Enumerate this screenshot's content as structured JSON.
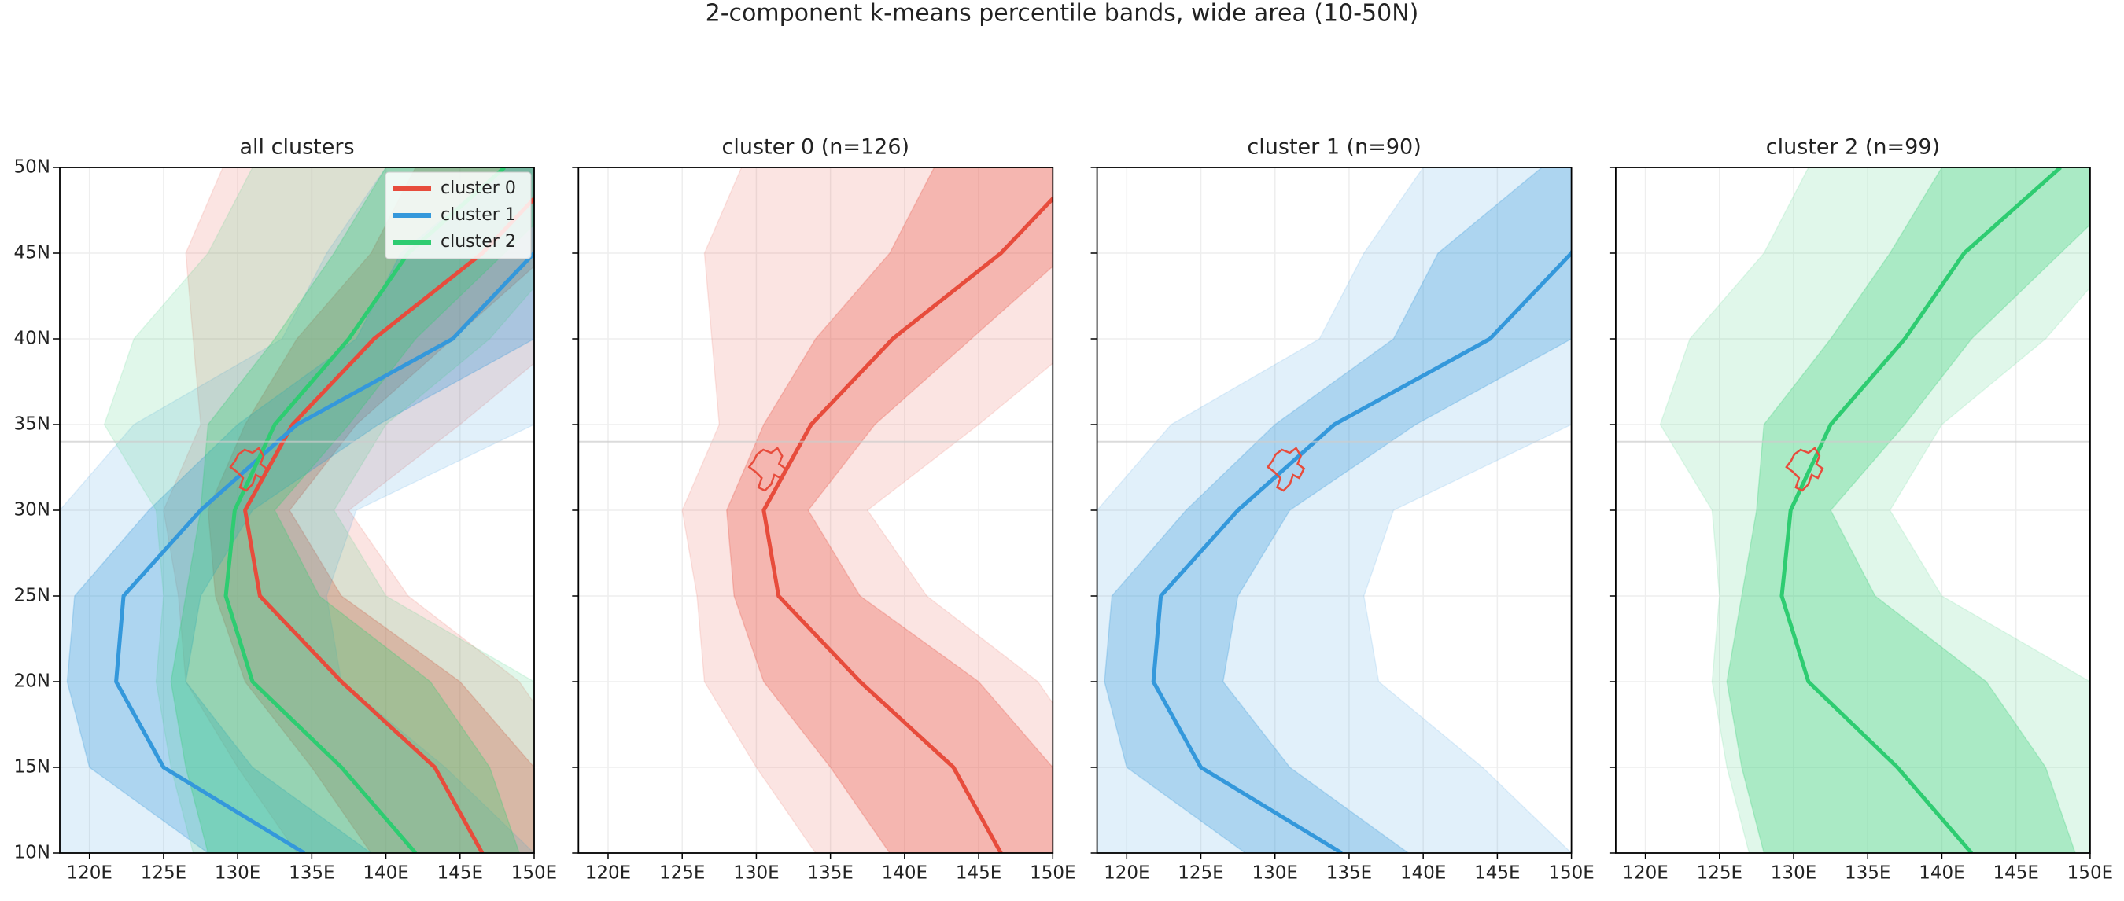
{
  "title": "2-component k-means percentile bands, wide area (10-50N)",
  "chart_data": [
    {
      "type": "band",
      "title": "all clusters",
      "legend": "upper right",
      "grid": true,
      "hline": 34,
      "show_ytick_labels": true,
      "lat": [
        10,
        15,
        20,
        25,
        30,
        35,
        40,
        45,
        50
      ],
      "xlim": [
        118,
        150
      ],
      "ylim": [
        10,
        50
      ],
      "xticks": [
        {
          "value": 120,
          "label": "120E"
        },
        {
          "value": 125,
          "label": "125E"
        },
        {
          "value": 130,
          "label": "130E"
        },
        {
          "value": 135,
          "label": "135E"
        },
        {
          "value": 140,
          "label": "140E"
        },
        {
          "value": 145,
          "label": "145E"
        },
        {
          "value": 150,
          "label": "150E"
        }
      ],
      "yticks": [
        {
          "value": 10,
          "label": "10N"
        },
        {
          "value": 15,
          "label": "15N"
        },
        {
          "value": 20,
          "label": "20N"
        },
        {
          "value": 25,
          "label": "25N"
        },
        {
          "value": 30,
          "label": "30N"
        },
        {
          "value": 35,
          "label": "35N"
        },
        {
          "value": 40,
          "label": "40N"
        },
        {
          "value": 45,
          "label": "45N"
        },
        {
          "value": 50,
          "label": "50N"
        }
      ],
      "series": [
        {
          "name": "cluster 0",
          "color": "#e74c3c",
          "values": [
            146.5,
            143.3,
            137,
            131.5,
            130.5,
            133.7,
            139.2,
            146.5,
            152
          ],
          "inner_low": [
            139,
            135,
            130.5,
            128.5,
            128,
            130.5,
            134,
            139,
            142
          ],
          "inner_high": [
            152,
            150,
            145,
            137,
            133.5,
            138,
            144.5,
            151,
            158
          ],
          "outer_low": [
            134,
            130,
            126.5,
            126,
            125,
            127.5,
            127,
            126.5,
            129
          ],
          "outer_high": [
            158,
            153,
            149,
            141.5,
            137.5,
            145,
            152,
            158,
            160
          ]
        },
        {
          "name": "cluster 1",
          "color": "#3498db",
          "values": [
            134.5,
            125,
            121.8,
            122.3,
            127.5,
            134,
            144.5,
            150,
            153
          ],
          "inner_low": [
            128,
            120,
            118.5,
            119,
            124,
            130,
            138,
            141,
            148
          ],
          "inner_high": [
            139,
            131,
            126.5,
            127.5,
            131,
            139.5,
            150,
            155,
            158
          ],
          "outer_low": [
            117,
            114,
            113,
            114,
            118,
            123,
            133,
            136,
            140
          ],
          "outer_high": [
            150,
            144,
            137,
            136,
            138,
            150,
            155,
            160,
            162
          ]
        },
        {
          "name": "cluster 2",
          "color": "#2ecc71",
          "values": [
            142,
            137,
            131,
            129.2,
            129.8,
            132.5,
            137.5,
            141.5,
            148
          ],
          "inner_low": [
            128,
            126.5,
            125.5,
            126.5,
            127.5,
            128,
            132.5,
            136.5,
            140
          ],
          "inner_high": [
            149,
            147,
            143,
            135.5,
            132.5,
            137.5,
            142,
            148,
            154
          ],
          "outer_low": [
            127,
            125.5,
            124.5,
            125,
            124.5,
            121,
            123,
            128,
            131
          ],
          "outer_high": [
            160,
            155,
            150,
            140,
            136.5,
            140,
            147,
            152,
            156
          ]
        }
      ]
    },
    {
      "type": "band",
      "title": "cluster 0 (n=126)",
      "grid": true,
      "hline": 34,
      "show_ytick_labels": false,
      "lat": [
        10,
        15,
        20,
        25,
        30,
        35,
        40,
        45,
        50
      ],
      "xlim": [
        118,
        150
      ],
      "ylim": [
        10,
        50
      ],
      "xticks": [
        {
          "value": 120,
          "label": "120E"
        },
        {
          "value": 125,
          "label": "125E"
        },
        {
          "value": 130,
          "label": "130E"
        },
        {
          "value": 135,
          "label": "135E"
        },
        {
          "value": 140,
          "label": "140E"
        },
        {
          "value": 145,
          "label": "145E"
        },
        {
          "value": 150,
          "label": "150E"
        }
      ],
      "yticks": [
        10,
        15,
        20,
        25,
        30,
        35,
        40,
        45,
        50
      ],
      "series": [
        {
          "color": "#e74c3c",
          "values": [
            146.5,
            143.3,
            137,
            131.5,
            130.5,
            133.7,
            139.2,
            146.5,
            152
          ],
          "inner_low": [
            139,
            135,
            130.5,
            128.5,
            128,
            130.5,
            134,
            139,
            142
          ],
          "inner_high": [
            152,
            150,
            145,
            137,
            133.5,
            138,
            144.5,
            151,
            158
          ],
          "outer_low": [
            134,
            130,
            126.5,
            126,
            125,
            127.5,
            127,
            126.5,
            129
          ],
          "outer_high": [
            158,
            153,
            149,
            141.5,
            137.5,
            145,
            152,
            158,
            160
          ]
        }
      ]
    },
    {
      "type": "band",
      "title": "cluster 1 (n=90)",
      "grid": true,
      "hline": 34,
      "show_ytick_labels": false,
      "lat": [
        10,
        15,
        20,
        25,
        30,
        35,
        40,
        45,
        50
      ],
      "xlim": [
        118,
        150
      ],
      "ylim": [
        10,
        50
      ],
      "xticks": [
        {
          "value": 120,
          "label": "120E"
        },
        {
          "value": 125,
          "label": "125E"
        },
        {
          "value": 130,
          "label": "130E"
        },
        {
          "value": 135,
          "label": "135E"
        },
        {
          "value": 140,
          "label": "140E"
        },
        {
          "value": 145,
          "label": "145E"
        },
        {
          "value": 150,
          "label": "150E"
        }
      ],
      "yticks": [
        10,
        15,
        20,
        25,
        30,
        35,
        40,
        45,
        50
      ],
      "series": [
        {
          "color": "#3498db",
          "values": [
            134.5,
            125,
            121.8,
            122.3,
            127.5,
            134,
            144.5,
            150,
            153
          ],
          "inner_low": [
            128,
            120,
            118.5,
            119,
            124,
            130,
            138,
            141,
            148
          ],
          "inner_high": [
            139,
            131,
            126.5,
            127.5,
            131,
            139.5,
            150,
            155,
            158
          ],
          "outer_low": [
            117,
            114,
            113,
            114,
            118,
            123,
            133,
            136,
            140
          ],
          "outer_high": [
            150,
            144,
            137,
            136,
            138,
            150,
            155,
            160,
            162
          ]
        }
      ]
    },
    {
      "type": "band",
      "title": "cluster 2 (n=99)",
      "grid": true,
      "hline": 34,
      "show_ytick_labels": false,
      "lat": [
        10,
        15,
        20,
        25,
        30,
        35,
        40,
        45,
        50
      ],
      "xlim": [
        118,
        150
      ],
      "ylim": [
        10,
        50
      ],
      "xticks": [
        {
          "value": 120,
          "label": "120E"
        },
        {
          "value": 125,
          "label": "125E"
        },
        {
          "value": 130,
          "label": "130E"
        },
        {
          "value": 135,
          "label": "135E"
        },
        {
          "value": 140,
          "label": "140E"
        },
        {
          "value": 145,
          "label": "145E"
        },
        {
          "value": 150,
          "label": "150E"
        }
      ],
      "yticks": [
        10,
        15,
        20,
        25,
        30,
        35,
        40,
        45,
        50
      ],
      "series": [
        {
          "color": "#2ecc71",
          "values": [
            142,
            137,
            131,
            129.2,
            129.8,
            132.5,
            137.5,
            141.5,
            148
          ],
          "inner_low": [
            128,
            126.5,
            125.5,
            126.5,
            127.5,
            128,
            132.5,
            136.5,
            140
          ],
          "inner_high": [
            149,
            147,
            143,
            135.5,
            132.5,
            137.5,
            142,
            148,
            154
          ],
          "outer_low": [
            127,
            125.5,
            124.5,
            125,
            124.5,
            121,
            123,
            128,
            131
          ],
          "outer_high": [
            160,
            155,
            150,
            140,
            136.5,
            140,
            147,
            152,
            156
          ]
        }
      ]
    }
  ]
}
